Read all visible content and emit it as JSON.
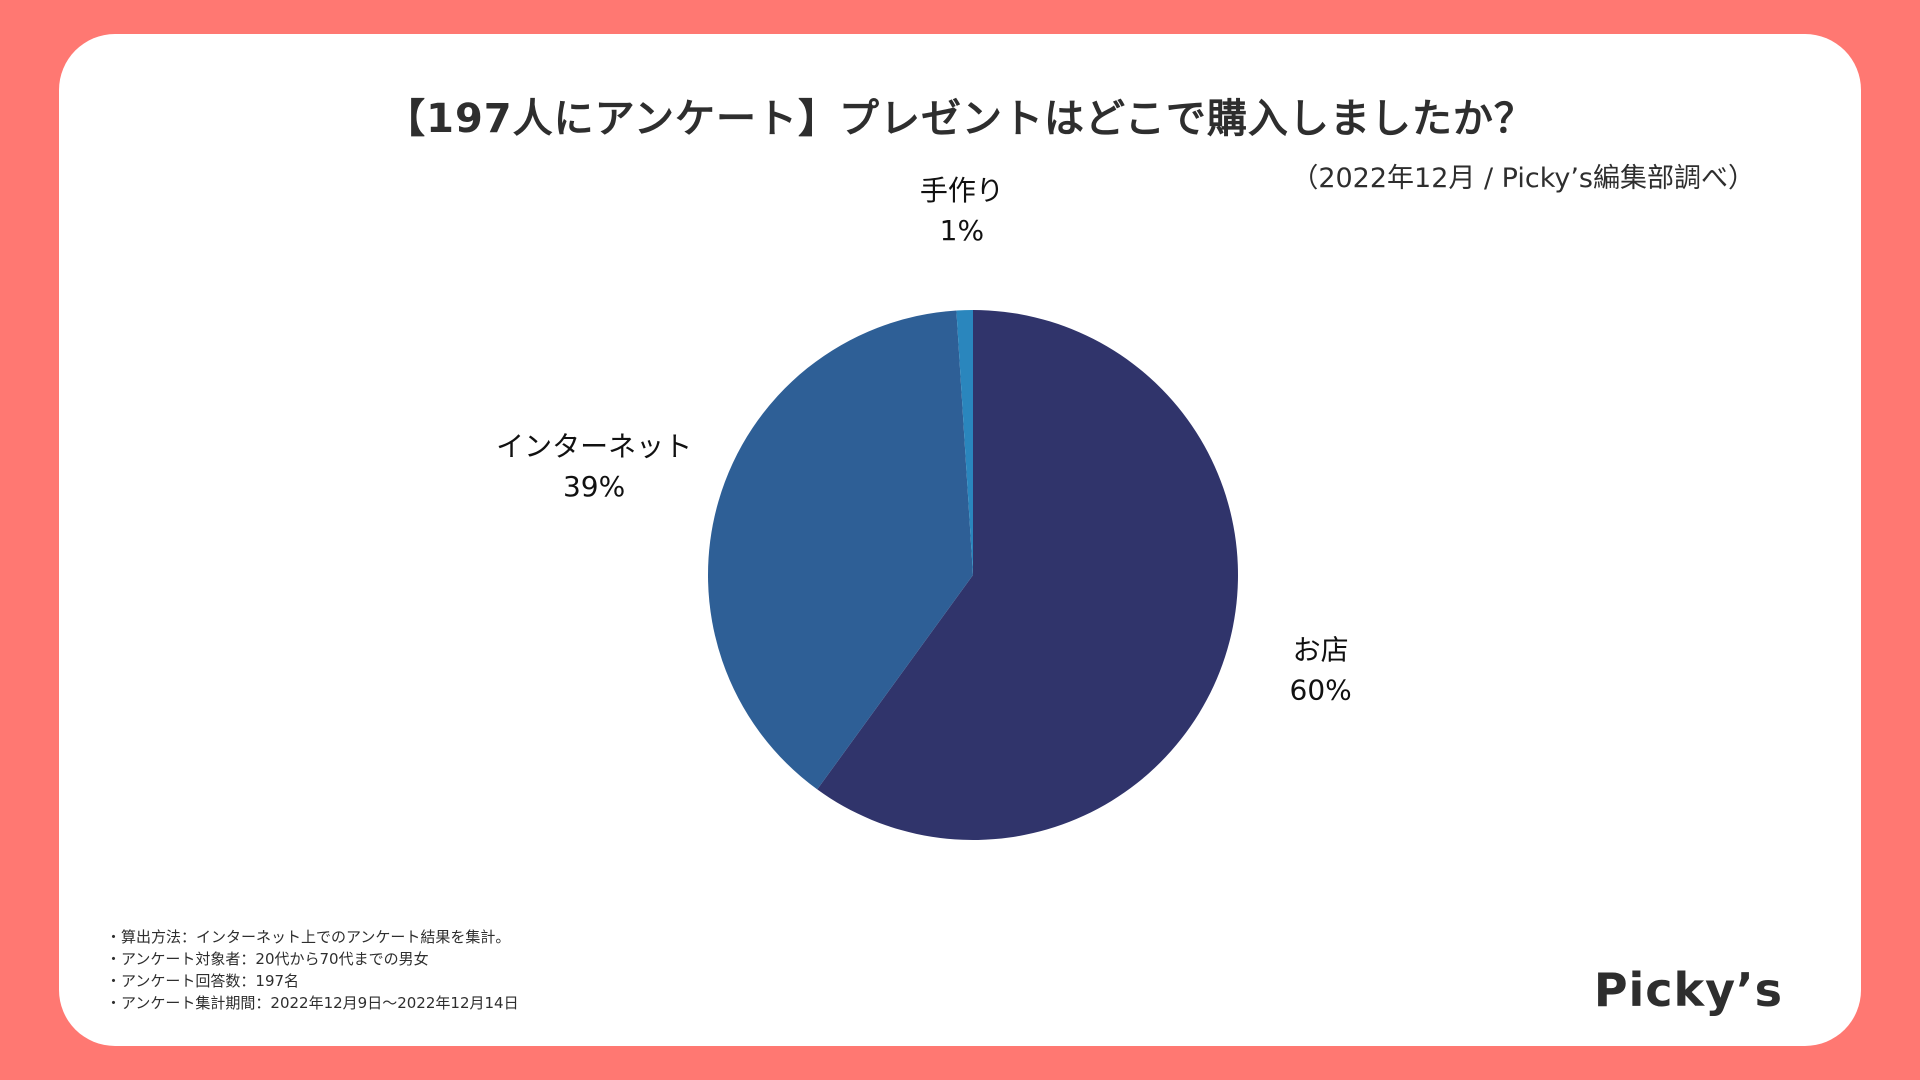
{
  "chart_data": {
    "type": "pie",
    "title": "【197人にアンケート】プレゼントはどこで購入しましたか？",
    "subtitle": "（2022年12月 / Picky’s編集部調べ）",
    "slices": [
      {
        "label": "お店",
        "value": 60,
        "value_label": "60%",
        "color": "#30346b"
      },
      {
        "label": "インターネット",
        "value": 39,
        "value_label": "39%",
        "color": "#2e5f96"
      },
      {
        "label": "手作り",
        "value": 1,
        "value_label": "1%",
        "color": "#2a86bd"
      }
    ],
    "start_angle_deg": 0,
    "direction": "clockwise",
    "legend": "none"
  },
  "notes": [
    "算出方法：インターネット上でのアンケート結果を集計。",
    "アンケート対象者：20代から70代までの男女",
    "アンケート回答数：197名",
    "アンケート集計期間：2022年12月9日〜2022年12月14日"
  ],
  "brand": "Picky’s",
  "colors": {
    "background": "#ff7872",
    "card": "#ffffff",
    "text": "#2e2e2e"
  }
}
